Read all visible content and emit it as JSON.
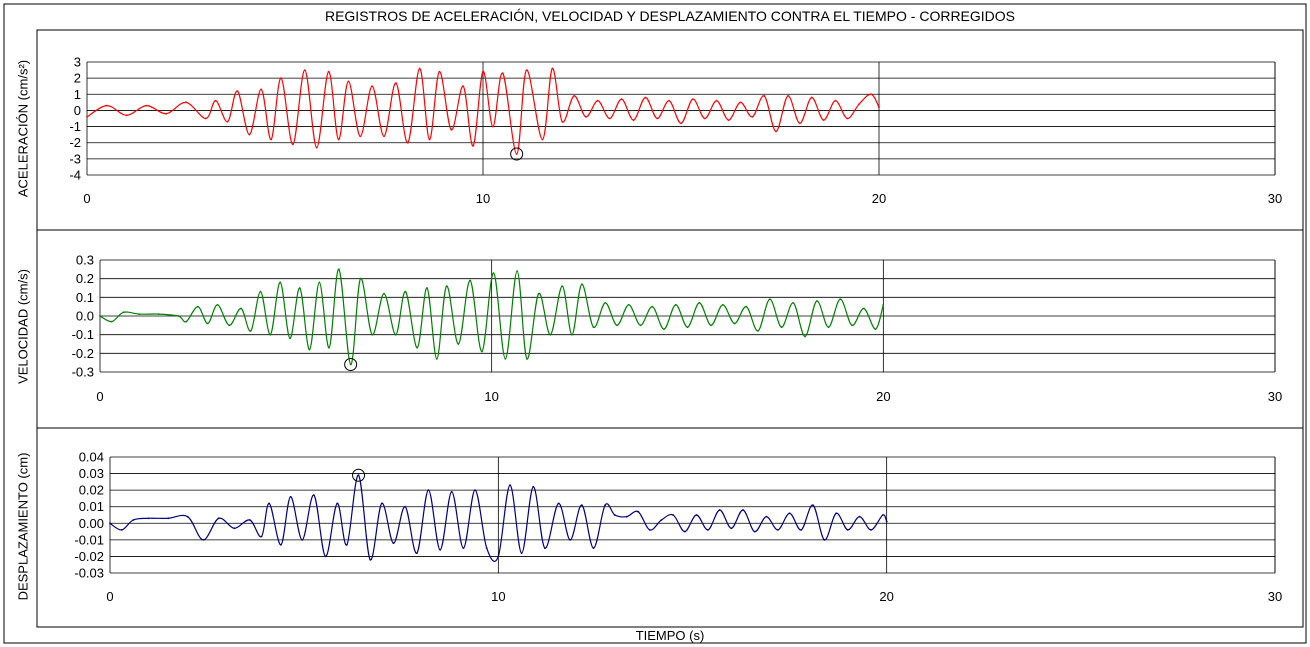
{
  "title": "REGISTROS DE ACELERACIÓN, VELOCIDAD Y DESPLAZAMIENTO CONTRA EL TIEMPO - CORREGIDOS",
  "xlabel": "TIEMPO (s)",
  "colors": {
    "acc": "#ff0000",
    "vel": "#008000",
    "disp": "#000080"
  },
  "chart_data": [
    {
      "type": "line",
      "ylabel": "ACELERACIÓN (cm/s²)",
      "xlim": [
        0,
        30
      ],
      "ylim": [
        -4,
        3
      ],
      "xticks": [
        "0",
        "10",
        "20",
        "30"
      ],
      "yticks": [
        "-4",
        "-3",
        "-2",
        "-1",
        "0",
        "1",
        "2",
        "3"
      ],
      "grid": true,
      "peak_marker": {
        "x": 10.85,
        "y": -2.7
      },
      "series": [
        {
          "x": [
            0.0,
            0.5,
            1.0,
            1.5,
            2.0,
            2.5,
            3.0,
            3.25,
            3.55,
            3.8,
            4.1,
            4.4,
            4.65,
            4.9,
            5.2,
            5.5,
            5.8,
            6.1,
            6.35,
            6.6,
            6.9,
            7.2,
            7.5,
            7.8,
            8.1,
            8.4,
            8.65,
            8.9,
            9.2,
            9.5,
            9.75,
            10.0,
            10.25,
            10.5,
            10.85,
            11.1,
            11.5,
            11.75,
            12.0,
            12.3,
            12.6,
            12.9,
            13.2,
            13.5,
            13.8,
            14.1,
            14.4,
            14.7,
            15.0,
            15.3,
            15.6,
            15.9,
            16.2,
            16.5,
            16.8,
            17.1,
            17.4,
            17.7,
            18.0,
            18.3,
            18.6,
            18.9,
            19.2,
            19.5,
            19.8,
            20.0
          ],
          "y": [
            -0.4,
            0.3,
            -0.3,
            0.3,
            -0.2,
            0.5,
            -0.5,
            0.6,
            -0.7,
            1.2,
            -1.5,
            1.3,
            -1.8,
            2.0,
            -2.1,
            2.5,
            -2.3,
            2.4,
            -1.8,
            1.8,
            -1.6,
            1.5,
            -1.6,
            1.7,
            -2.0,
            2.6,
            -1.8,
            2.4,
            -1.2,
            1.5,
            -2.2,
            2.4,
            -1.0,
            2.3,
            -2.7,
            2.5,
            -1.8,
            2.6,
            -0.7,
            0.9,
            -0.4,
            0.6,
            -0.5,
            0.7,
            -0.6,
            0.8,
            -0.5,
            0.6,
            -0.8,
            0.7,
            -0.5,
            0.6,
            -0.6,
            0.5,
            -0.4,
            0.9,
            -1.3,
            0.9,
            -0.8,
            0.8,
            -0.6,
            0.6,
            -0.5,
            0.4,
            1.0,
            0.2
          ]
        }
      ]
    },
    {
      "type": "line",
      "ylabel": "VELOCIDAD (cm/s)",
      "xlim": [
        0,
        30
      ],
      "ylim": [
        -0.3,
        0.3
      ],
      "xticks": [
        "0",
        "10",
        "20",
        "30"
      ],
      "yticks": [
        "0.3",
        "0.2",
        "0.1",
        "0.0",
        "-0.1",
        "-0.2",
        "-0.3"
      ],
      "grid": true,
      "peak_marker": {
        "x": 6.4,
        "y": -0.26
      },
      "series": [
        {
          "x": [
            0.0,
            0.3,
            0.6,
            1.0,
            1.5,
            2.0,
            2.2,
            2.5,
            2.75,
            3.0,
            3.3,
            3.6,
            3.85,
            4.1,
            4.35,
            4.6,
            4.85,
            5.1,
            5.35,
            5.6,
            5.85,
            6.1,
            6.4,
            6.65,
            6.95,
            7.25,
            7.55,
            7.8,
            8.1,
            8.35,
            8.6,
            8.85,
            9.15,
            9.45,
            9.75,
            10.05,
            10.35,
            10.65,
            10.9,
            11.2,
            11.5,
            11.8,
            12.05,
            12.3,
            12.6,
            12.9,
            13.2,
            13.5,
            13.8,
            14.1,
            14.4,
            14.7,
            15.0,
            15.3,
            15.6,
            15.9,
            16.2,
            16.5,
            16.8,
            17.1,
            17.4,
            17.7,
            18.0,
            18.3,
            18.6,
            18.9,
            19.2,
            19.5,
            19.8,
            20.0
          ],
          "y": [
            0.0,
            -0.03,
            0.02,
            0.01,
            0.01,
            0.0,
            -0.03,
            0.05,
            -0.04,
            0.06,
            -0.05,
            0.04,
            -0.08,
            0.13,
            -0.1,
            0.18,
            -0.12,
            0.15,
            -0.18,
            0.18,
            -0.17,
            0.25,
            -0.26,
            0.2,
            -0.1,
            0.12,
            -0.1,
            0.13,
            -0.17,
            0.15,
            -0.23,
            0.16,
            -0.15,
            0.19,
            -0.19,
            0.23,
            -0.23,
            0.24,
            -0.23,
            0.12,
            -0.1,
            0.16,
            -0.1,
            0.17,
            -0.06,
            0.07,
            -0.05,
            0.06,
            -0.05,
            0.05,
            -0.07,
            0.06,
            -0.06,
            0.07,
            -0.05,
            0.06,
            -0.04,
            0.05,
            -0.08,
            0.09,
            -0.06,
            0.07,
            -0.11,
            0.08,
            -0.06,
            0.09,
            -0.05,
            0.04,
            -0.07,
            0.06
          ]
        }
      ]
    },
    {
      "type": "line",
      "ylabel": "DESPLAZAMIENTO (cm)",
      "xlim": [
        0,
        30
      ],
      "ylim": [
        -0.03,
        0.04
      ],
      "xticks": [
        "0",
        "10",
        "20",
        "30"
      ],
      "yticks": [
        "0.04",
        "0.03",
        "0.02",
        "0.01",
        "0.00",
        "-0.01",
        "-0.02",
        "-0.03"
      ],
      "grid": true,
      "peak_marker": {
        "x": 6.4,
        "y": 0.029
      },
      "series": [
        {
          "x": [
            0.0,
            0.3,
            0.6,
            1.0,
            1.5,
            2.0,
            2.4,
            2.8,
            3.2,
            3.6,
            3.9,
            4.1,
            4.4,
            4.65,
            4.95,
            5.25,
            5.55,
            5.85,
            6.1,
            6.4,
            6.7,
            7.0,
            7.3,
            7.6,
            7.9,
            8.2,
            8.5,
            8.8,
            9.1,
            9.4,
            9.7,
            10.0,
            10.3,
            10.6,
            10.9,
            11.2,
            11.55,
            11.85,
            12.15,
            12.45,
            12.75,
            13.0,
            13.3,
            13.6,
            13.9,
            14.2,
            14.5,
            14.8,
            15.1,
            15.4,
            15.7,
            16.0,
            16.3,
            16.6,
            16.9,
            17.2,
            17.5,
            17.8,
            18.1,
            18.4,
            18.7,
            19.0,
            19.3,
            19.6,
            19.9,
            20.0
          ],
          "y": [
            0.0,
            -0.004,
            0.002,
            0.003,
            0.003,
            0.004,
            -0.01,
            0.003,
            -0.003,
            0.002,
            -0.008,
            0.012,
            -0.013,
            0.016,
            -0.01,
            0.017,
            -0.02,
            0.012,
            -0.013,
            0.029,
            -0.022,
            0.012,
            -0.012,
            0.01,
            -0.018,
            0.02,
            -0.016,
            0.019,
            -0.015,
            0.02,
            -0.015,
            -0.02,
            0.023,
            -0.018,
            0.022,
            -0.015,
            0.012,
            -0.01,
            0.011,
            -0.015,
            0.011,
            0.005,
            0.004,
            0.007,
            -0.004,
            0.002,
            0.005,
            -0.005,
            0.005,
            -0.004,
            0.008,
            -0.003,
            0.008,
            -0.005,
            0.004,
            -0.004,
            0.006,
            -0.004,
            0.011,
            -0.01,
            0.006,
            -0.004,
            0.004,
            -0.004,
            0.005,
            0.001
          ]
        }
      ]
    }
  ]
}
